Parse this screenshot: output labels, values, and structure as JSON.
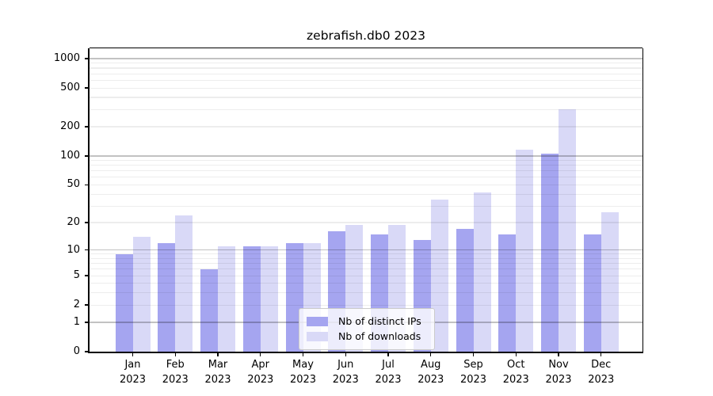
{
  "window": {
    "title": "zebrafish.db0 2023"
  },
  "chart_data": {
    "type": "bar",
    "title": "zebrafish.db0 2023",
    "scale": "log1p",
    "grid": true,
    "months": [
      "Jan",
      "Feb",
      "Mar",
      "Apr",
      "May",
      "Jun",
      "Jul",
      "Aug",
      "Sep",
      "Oct",
      "Nov",
      "Dec"
    ],
    "year": "2023",
    "series": [
      {
        "name": "Nb of distinct IPs",
        "color": "#a5a5f0",
        "values": [
          9,
          12,
          6,
          11,
          12,
          16,
          15,
          13,
          17,
          15,
          105,
          15
        ]
      },
      {
        "name": "Nb of downloads",
        "color": "#d9d9f7",
        "values": [
          14,
          24,
          11,
          11,
          12,
          19,
          19,
          35,
          42,
          116,
          300,
          26
        ]
      }
    ],
    "y_ticks": [
      0,
      1,
      2,
      5,
      10,
      20,
      50,
      100,
      200,
      500,
      1000
    ],
    "major_grid_values": [
      1,
      10,
      100,
      1000
    ],
    "minor_grid_values": [
      2,
      3,
      4,
      5,
      6,
      7,
      8,
      9,
      20,
      30,
      40,
      50,
      60,
      70,
      80,
      90,
      200,
      300,
      400,
      500,
      600,
      700,
      800,
      900
    ],
    "ylim": [
      0,
      1275
    ],
    "xlabel": "",
    "ylabel": "",
    "legend": {
      "position": "lower center"
    }
  }
}
